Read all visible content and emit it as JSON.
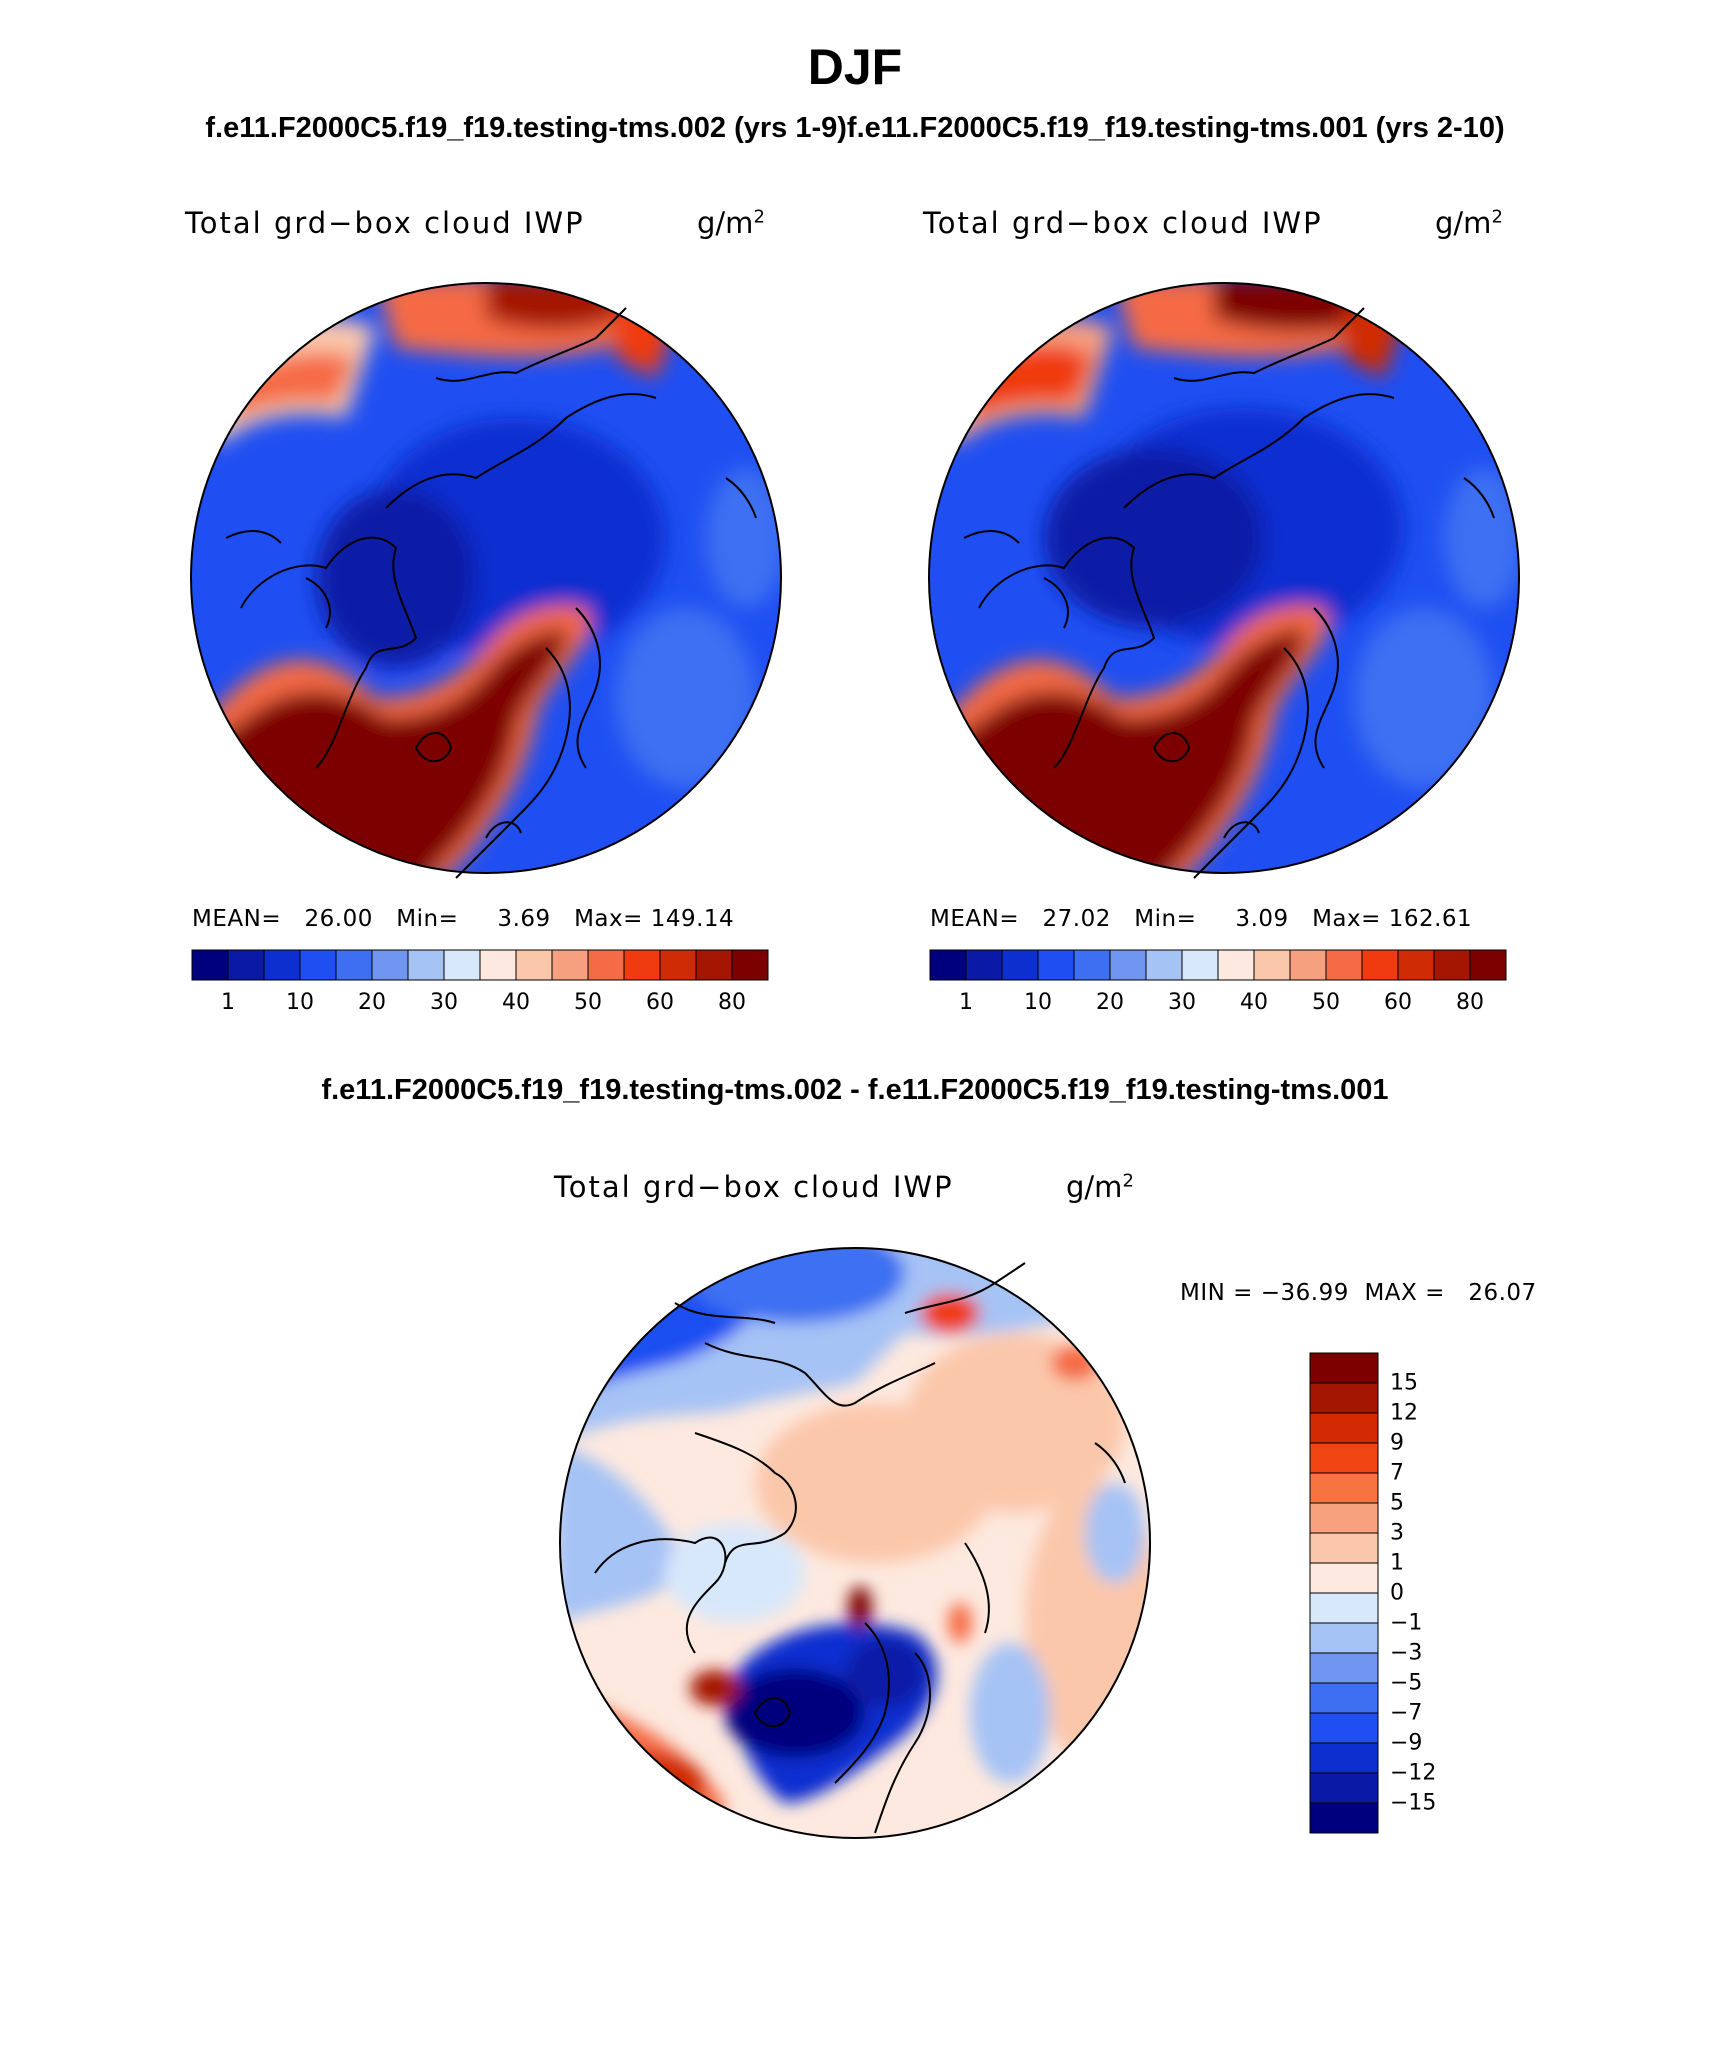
{
  "header": {
    "season": "DJF",
    "case_titles": "f.e11.F2000C5.f19_f19.testing-tms.002 (yrs 1-9)f.e11.F2000C5.f19_f19.testing-tms.001 (yrs 2-10)",
    "diff_title": "f.e11.F2000C5.f19_f19.testing-tms.002 - f.e11.F2000C5.f19_f19.testing-tms.001"
  },
  "panels": [
    {
      "variable": "Total grd−box cloud IWP",
      "unit": "g/m",
      "unit_exp": "2",
      "stats": "MEAN=   26.00   Min=     3.69   Max= 149.14",
      "mean": 26.0,
      "min": 3.69,
      "max": 149.14
    },
    {
      "variable": "Total grd−box cloud IWP",
      "unit": "g/m",
      "unit_exp": "2",
      "stats": "MEAN=   27.02   Min=     3.09   Max= 162.61",
      "mean": 27.02,
      "min": 3.09,
      "max": 162.61
    }
  ],
  "diff_panel": {
    "variable": "Total grd−box cloud IWP",
    "unit": "g/m",
    "unit_exp": "2",
    "stats": "MIN = −36.99  MAX =   26.07",
    "min": -36.99,
    "max": 26.07
  },
  "colorbar_main": {
    "colors": [
      "#00007f",
      "#0a1aa6",
      "#0d2fd0",
      "#1f4ff2",
      "#3e6ff2",
      "#7196f2",
      "#a6c3f5",
      "#d8e8fb",
      "#fde9df",
      "#fbc7ab",
      "#f7a080",
      "#f56b45",
      "#f03b10",
      "#cf2b04",
      "#a41502",
      "#7d0000"
    ],
    "tick_labels": [
      "1",
      "10",
      "20",
      "30",
      "40",
      "50",
      "60",
      "80"
    ]
  },
  "colorbar_diff": {
    "colors_top_to_bottom": [
      "#7d0000",
      "#a41502",
      "#d42a04",
      "#f04512",
      "#f5743f",
      "#f7a27d",
      "#fbc7ab",
      "#fde9df",
      "#d8e8fb",
      "#a6c3f5",
      "#7196f2",
      "#3e6ff2",
      "#1f4ff2",
      "#0d2fd0",
      "#0a1aa6",
      "#00007f"
    ],
    "tick_labels": [
      "15",
      "12",
      "9",
      "7",
      "5",
      "3",
      "1",
      "0",
      "−1",
      "−3",
      "−5",
      "−7",
      "−9",
      "−12",
      "−15"
    ]
  }
}
